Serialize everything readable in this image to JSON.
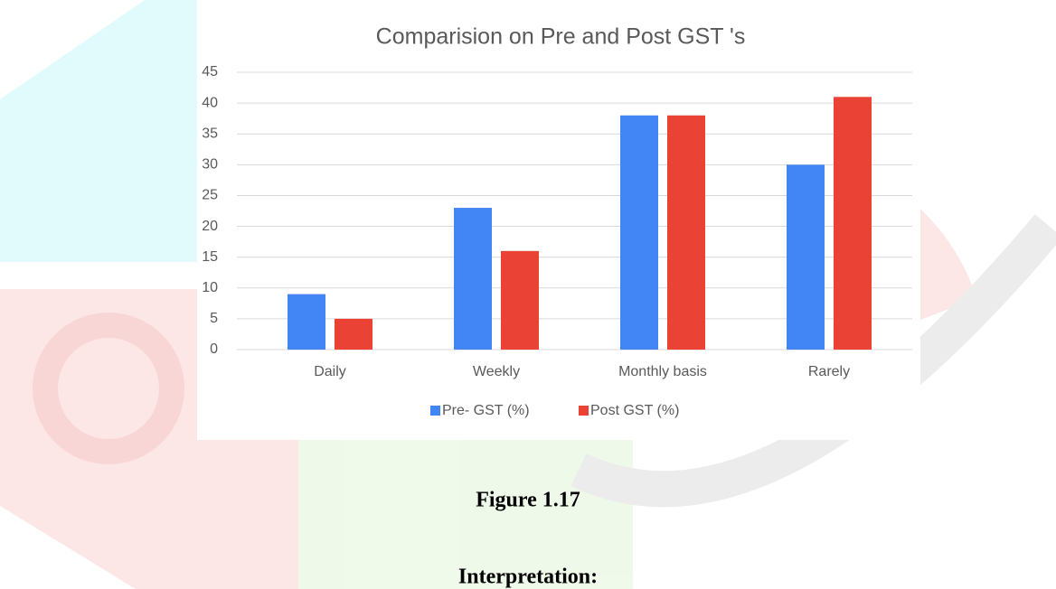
{
  "chart_data": {
    "type": "bar",
    "title": "Comparision on Pre and Post GST 's",
    "categories": [
      "Daily",
      "Weekly",
      "Monthly basis",
      "Rarely"
    ],
    "series": [
      {
        "name": "Pre- GST (%)",
        "color": "#4285f4",
        "values": [
          9,
          23,
          38,
          30
        ]
      },
      {
        "name": "Post GST (%)",
        "color": "#ea4335",
        "values": [
          5,
          16,
          38,
          41
        ]
      }
    ],
    "ylim": [
      0,
      45
    ],
    "yticks": [
      0,
      5,
      10,
      15,
      20,
      25,
      30,
      35,
      40,
      45
    ],
    "grid": true,
    "legend": "bottom"
  },
  "caption": "Figure 1.17",
  "heading": "Interpretation:"
}
